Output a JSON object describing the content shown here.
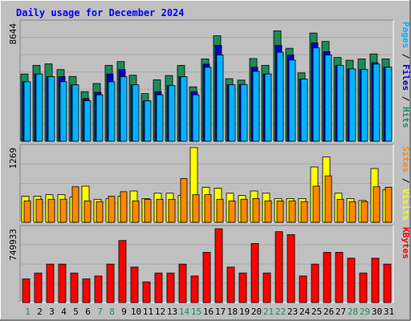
{
  "chart_data": [
    {
      "type": "bar",
      "title": "Daily usage for December 2024",
      "categories": [
        "1",
        "2",
        "3",
        "4",
        "5",
        "6",
        "7",
        "8",
        "9",
        "10",
        "11",
        "12",
        "13",
        "14",
        "15",
        "16",
        "17",
        "18",
        "19",
        "20",
        "21",
        "22",
        "23",
        "24",
        "25",
        "26",
        "27",
        "28",
        "29",
        "30",
        "31"
      ],
      "weekend_days": [
        "1",
        "7",
        "8",
        "14",
        "15",
        "21",
        "22",
        "28",
        "29"
      ],
      "ymax_label": "8644",
      "ylim": [
        0,
        8644
      ],
      "legend": [
        "Pages",
        "/",
        "Files",
        "/",
        "Hits"
      ],
      "series": [
        {
          "name": "Hits",
          "values": [
            4928,
            5558,
            5665,
            5251,
            4747,
            3633,
            4232,
            5558,
            5838,
            4834,
            3491,
            4502,
            4815,
            5558,
            3987,
            6029,
            7733,
            4583,
            4478,
            6057,
            5558,
            8092,
            6813,
            5010,
            7928,
            7310,
            6136,
            5936,
            6028,
            6399,
            6028
          ],
          "color": "#1e8a5a"
        },
        {
          "name": "Files",
          "values": [
            4358,
            4928,
            4734,
            4728,
            4134,
            3124,
            3586,
            4928,
            5258,
            4134,
            2962,
            3636,
            4078,
            4728,
            3636,
            5650,
            7020,
            4134,
            4158,
            5420,
            4928,
            7020,
            6320,
            4558,
            7200,
            6560,
            5556,
            5300,
            5258,
            5750,
            5426
          ],
          "color": "#0000c8"
        },
        {
          "name": "Pages",
          "values": [
            4358,
            4928,
            4734,
            4358,
            4134,
            2962,
            3404,
            4358,
            4728,
            4134,
            2962,
            3404,
            4078,
            4728,
            3404,
            5420,
            6320,
            4134,
            4158,
            5124,
            4928,
            6520,
            5950,
            4558,
            6840,
            6320,
            5556,
            5300,
            5258,
            5650,
            5426
          ],
          "color": "#00b4ff"
        }
      ]
    },
    {
      "type": "bar",
      "categories": [
        "1",
        "2",
        "3",
        "4",
        "5",
        "6",
        "7",
        "8",
        "9",
        "10",
        "11",
        "12",
        "13",
        "14",
        "15",
        "16",
        "17",
        "18",
        "19",
        "20",
        "21",
        "22",
        "23",
        "24",
        "25",
        "26",
        "27",
        "28",
        "29",
        "30",
        "31"
      ],
      "ymax_label": "1269",
      "ylim": [
        0,
        1269
      ],
      "legend": [
        "Sites",
        "/",
        "Visits"
      ],
      "series": [
        {
          "name": "Visits",
          "values": [
            443,
            443,
            469,
            469,
            430,
            614,
            391,
            403,
            443,
            532,
            403,
            494,
            494,
            455,
            1269,
            596,
            580,
            494,
            455,
            532,
            494,
            404,
            404,
            404,
            941,
            1110,
            494,
            404,
            371,
            914,
            555
          ],
          "color": "#ffff00"
        },
        {
          "name": "Sites",
          "values": [
            364,
            391,
            391,
            391,
            604,
            364,
            352,
            443,
            520,
            364,
            391,
            391,
            391,
            744,
            469,
            469,
            391,
            364,
            391,
            404,
            364,
            364,
            364,
            352,
            615,
            790,
            391,
            352,
            352,
            604,
            596
          ],
          "color": "#ff8800"
        }
      ]
    },
    {
      "type": "bar",
      "categories": [
        "1",
        "2",
        "3",
        "4",
        "5",
        "6",
        "7",
        "8",
        "9",
        "10",
        "11",
        "12",
        "13",
        "14",
        "15",
        "16",
        "17",
        "18",
        "19",
        "20",
        "21",
        "22",
        "23",
        "24",
        "25",
        "26",
        "27",
        "28",
        "29",
        "30",
        "31"
      ],
      "ymax_label": "749933",
      "ylim": [
        0,
        749933
      ],
      "legend": [
        "KBytes"
      ],
      "series": [
        {
          "name": "KBytes",
          "values": [
            240000,
            300000,
            390000,
            390000,
            300000,
            240000,
            270000,
            390000,
            630000,
            360000,
            210000,
            300000,
            300000,
            390000,
            270000,
            510000,
            749933,
            360000,
            300000,
            600000,
            300000,
            720000,
            690000,
            270000,
            390000,
            510000,
            510000,
            450000,
            300000,
            450000,
            390000
          ],
          "color": "#ff0000"
        }
      ]
    }
  ]
}
